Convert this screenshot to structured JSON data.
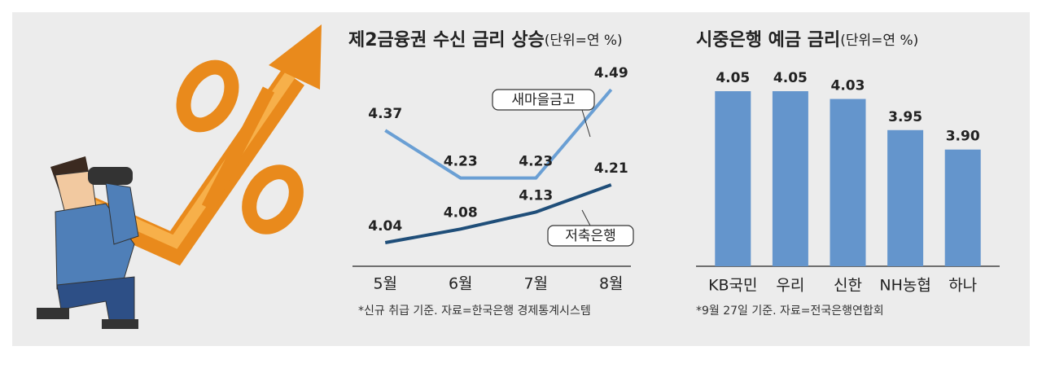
{
  "chart_data": [
    {
      "type": "line",
      "title": "제2금융권 수신 금리 상승",
      "unit": "(단위=연 %)",
      "categories": [
        "5월",
        "6월",
        "7월",
        "8월"
      ],
      "series": [
        {
          "name": "새마을금고",
          "color": "#6a9fd4",
          "values": [
            4.37,
            4.23,
            4.23,
            4.49
          ]
        },
        {
          "name": "저축은행",
          "color": "#1f4e79",
          "values": [
            4.04,
            4.08,
            4.13,
            4.21
          ]
        }
      ],
      "note": "*신규 취급 기준. 자료=한국은행 경제통계시스템"
    },
    {
      "type": "bar",
      "title": "시중은행 예금 금리",
      "unit": "(단위=연 %)",
      "categories": [
        "KB국민",
        "우리",
        "신한",
        "NH농협",
        "하나"
      ],
      "values": [
        4.05,
        4.05,
        4.03,
        3.95,
        3.9
      ],
      "value_labels": [
        "4.05",
        "4.05",
        "4.03",
        "3.95",
        "3.90"
      ],
      "color": "#6495cc",
      "note": "*9월 27일 기준. 자료=전국은행연합회"
    }
  ]
}
